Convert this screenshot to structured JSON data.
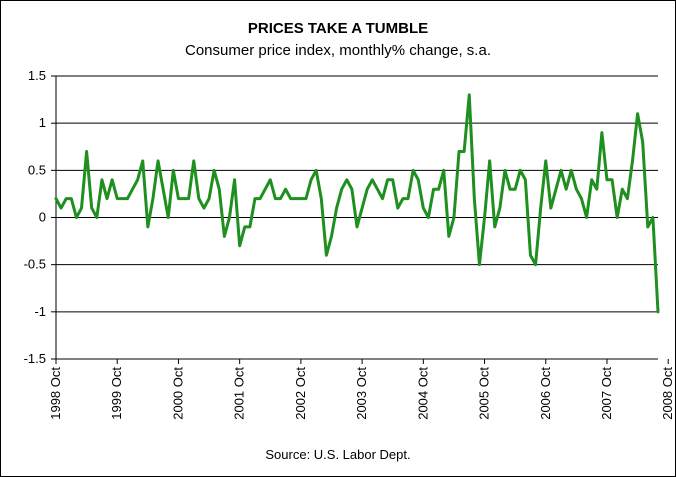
{
  "chart_data": {
    "type": "line",
    "title": "PRICES TAKE A TUMBLE",
    "subtitle": "Consumer price index, monthly% change, s.a.",
    "source": "Source: U.S. Labor Dept.",
    "xlabel": "",
    "ylabel": "",
    "ylim": [
      -1.5,
      1.5
    ],
    "y_ticks": [
      "1.5",
      "1",
      "0.5",
      "0",
      "-0.5",
      "-1",
      "-1.5"
    ],
    "x_ticks": [
      "1998 Oct",
      "1999 Oct",
      "2000 Oct",
      "2001 Oct",
      "2002 Oct",
      "2003 Oct",
      "2004 Oct",
      "2005 Oct",
      "2006 Oct",
      "2007 Oct",
      "2008 Oct"
    ],
    "grid": "horizontal",
    "line_color": "#1f8f1f",
    "series": [
      {
        "values": [
          0.2,
          0.1,
          0.2,
          0.2,
          0.0,
          0.1,
          0.7,
          0.1,
          0.0,
          0.4,
          0.2,
          0.4,
          0.2,
          0.2,
          0.2,
          0.3,
          0.4,
          0.6,
          -0.1,
          0.2,
          0.6,
          0.3,
          0.0,
          0.5,
          0.2,
          0.2,
          0.2,
          0.6,
          0.2,
          0.1,
          0.2,
          0.5,
          0.3,
          -0.2,
          0.0,
          0.4,
          -0.3,
          -0.1,
          -0.1,
          0.2,
          0.2,
          0.3,
          0.4,
          0.2,
          0.2,
          0.3,
          0.2,
          0.2,
          0.2,
          0.2,
          0.4,
          0.5,
          0.2,
          -0.4,
          -0.2,
          0.1,
          0.3,
          0.4,
          0.3,
          -0.1,
          0.1,
          0.3,
          0.4,
          0.3,
          0.2,
          0.4,
          0.4,
          0.1,
          0.2,
          0.2,
          0.5,
          0.4,
          0.1,
          0.0,
          0.3,
          0.3,
          0.5,
          -0.2,
          0.0,
          0.7,
          0.7,
          1.3,
          0.2,
          -0.5,
          0.0,
          0.6,
          -0.1,
          0.1,
          0.5,
          0.3,
          0.3,
          0.5,
          0.4,
          -0.4,
          -0.5,
          0.1,
          0.6,
          0.1,
          0.3,
          0.5,
          0.3,
          0.5,
          0.3,
          0.2,
          0.0,
          0.4,
          0.3,
          0.9,
          0.4,
          0.4,
          0.0,
          0.3,
          0.2,
          0.6,
          1.1,
          0.8,
          -0.1,
          0.0,
          -1.0
        ]
      }
    ]
  }
}
